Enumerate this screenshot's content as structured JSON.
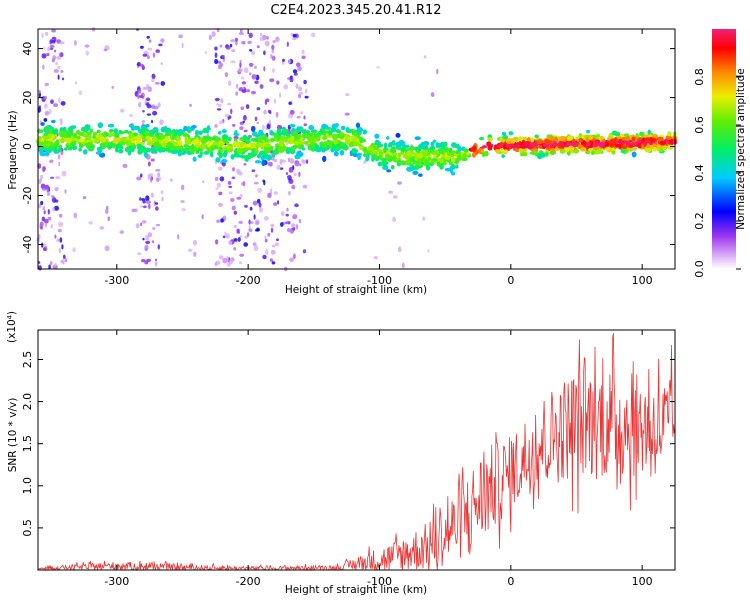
{
  "title": "C2E4.2023.345.20.41.R12",
  "chart_data": [
    {
      "type": "heatmap",
      "xlabel": "Height of straight line (km)",
      "ylabel": "Frequency (Hz)",
      "xlim": [
        -360,
        125
      ],
      "ylim": [
        -50,
        48
      ],
      "x_ticks": [
        -300,
        -200,
        -100,
        0,
        100
      ],
      "y_ticks": [
        -40,
        -20,
        0,
        20,
        40
      ],
      "colorbar": {
        "label": "Normalized spectral amplitude",
        "ticks": [
          "0.0",
          "0.2",
          "0.4",
          "0.6",
          "0.8"
        ],
        "range": [
          0,
          1
        ]
      },
      "band_center_hz": [
        {
          "x": -360,
          "f": 3
        },
        {
          "x": -300,
          "f": 3
        },
        {
          "x": -250,
          "f": 2
        },
        {
          "x": -200,
          "f": 0
        },
        {
          "x": -150,
          "f": 3
        },
        {
          "x": -120,
          "f": 3
        },
        {
          "x": -100,
          "f": -3
        },
        {
          "x": -80,
          "f": -4
        },
        {
          "x": -60,
          "f": -4
        },
        {
          "x": -40,
          "f": -4
        },
        {
          "x": -20,
          "f": 0
        },
        {
          "x": 0,
          "f": 0.5
        },
        {
          "x": 50,
          "f": 1
        },
        {
          "x": 125,
          "f": 2
        }
      ],
      "high_scatter_ranges_km": [
        [
          -360,
          -340
        ],
        [
          -285,
          -265
        ],
        [
          -225,
          -155
        ]
      ]
    },
    {
      "type": "line",
      "xlabel": "Height of straight line (km)",
      "ylabel": "SNR (10 * v/v)",
      "y_multiplier": "(x10⁴)",
      "xlim": [
        -360,
        125
      ],
      "ylim": [
        0,
        2.85
      ],
      "x_ticks": [
        -300,
        -200,
        -100,
        0,
        100
      ],
      "y_ticks": [
        "0.5",
        "1.0",
        "1.5",
        "2.0",
        "2.5"
      ],
      "color": "#ee3333",
      "envelope": [
        {
          "x": -360,
          "mean": 0.02,
          "amp": 0.02
        },
        {
          "x": -300,
          "mean": 0.05,
          "amp": 0.07
        },
        {
          "x": -250,
          "mean": 0.03,
          "amp": 0.05
        },
        {
          "x": -200,
          "mean": 0.02,
          "amp": 0.03
        },
        {
          "x": -130,
          "mean": 0.03,
          "amp": 0.04
        },
        {
          "x": -110,
          "mean": 0.1,
          "amp": 0.15
        },
        {
          "x": -90,
          "mean": 0.15,
          "amp": 0.25
        },
        {
          "x": -60,
          "mean": 0.3,
          "amp": 0.4
        },
        {
          "x": -40,
          "mean": 0.55,
          "amp": 0.6
        },
        {
          "x": -20,
          "mean": 0.9,
          "amp": 0.75
        },
        {
          "x": 0,
          "mean": 1.15,
          "amp": 0.6
        },
        {
          "x": 20,
          "mean": 1.5,
          "amp": 0.7
        },
        {
          "x": 50,
          "mean": 1.75,
          "amp": 0.9
        },
        {
          "x": 80,
          "mean": 1.75,
          "amp": 0.9
        },
        {
          "x": 100,
          "mean": 1.7,
          "amp": 0.8
        },
        {
          "x": 125,
          "mean": 1.7,
          "amp": 0.8
        }
      ]
    }
  ]
}
